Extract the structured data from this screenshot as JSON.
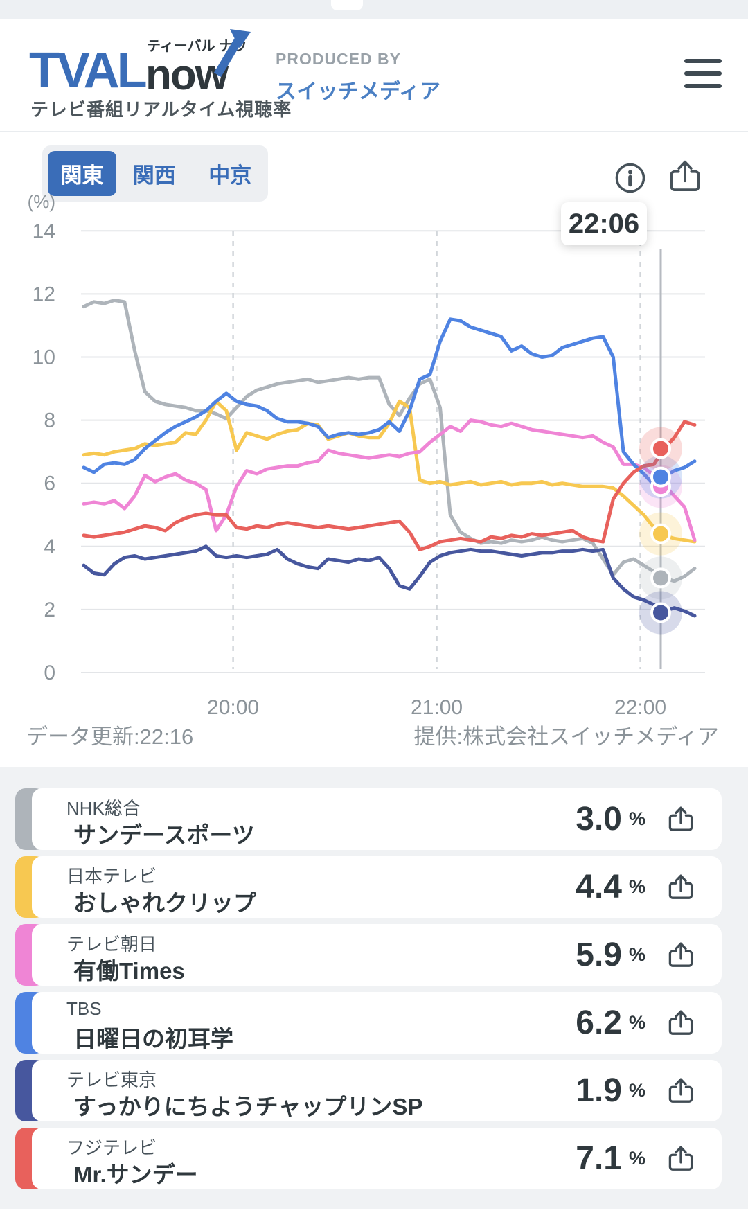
{
  "header": {
    "logo_tval": "TVAL",
    "logo_now": "now",
    "logo_ruby": "ティーバル ナウ",
    "logo_subtitle": "テレビ番組リアルタイム視聴率",
    "produced_by": "PRODUCED BY",
    "producer": "スイッチメディア"
  },
  "tabs": [
    {
      "label": "関東",
      "active": true
    },
    {
      "label": "関西",
      "active": false
    },
    {
      "label": "中京",
      "active": false
    }
  ],
  "footer": {
    "updated": "データ更新:22:16",
    "provider": "提供:株式会社スイッチメディア"
  },
  "ui_colors": {
    "accent_blue": "#3a6db8",
    "icon_slate": "#47525a",
    "text_dark": "#2f383d",
    "text_gray": "#8b9399",
    "list_bg": "#f0f2f4"
  },
  "chart_data": {
    "type": "line",
    "title": "",
    "y_axis": {
      "unit": "(%)",
      "ticks": [
        0,
        2,
        4,
        6,
        8,
        10,
        12,
        14
      ],
      "range": [
        0,
        14
      ],
      "grid": true
    },
    "x_axis": {
      "tick_labels": [
        "20:00",
        "21:00",
        "22:00"
      ],
      "tick_minutes": [
        44,
        104,
        164
      ],
      "total_minutes": 180,
      "step_minutes": 3
    },
    "cursor": {
      "time": "22:06",
      "minute": 170
    },
    "series": [
      {
        "name": "NHK総合",
        "color": "#aeb4ba",
        "current": 3.0,
        "values": [
          11.6,
          11.75,
          11.7,
          11.8,
          11.75,
          10.2,
          8.9,
          8.6,
          8.5,
          8.45,
          8.4,
          8.3,
          8.3,
          8.2,
          8.05,
          8.4,
          8.75,
          8.95,
          9.05,
          9.15,
          9.2,
          9.25,
          9.3,
          9.2,
          9.25,
          9.3,
          9.35,
          9.3,
          9.35,
          9.35,
          8.5,
          8.15,
          8.7,
          9.15,
          9.3,
          8.4,
          5.0,
          4.45,
          4.25,
          4.1,
          4.15,
          4.1,
          4.2,
          4.15,
          4.2,
          4.3,
          4.2,
          4.15,
          4.2,
          4.25,
          4.1,
          3.6,
          3.1,
          3.5,
          3.6,
          3.4,
          3.2,
          3.0,
          2.9,
          3.05,
          3.3
        ]
      },
      {
        "name": "日本テレビ",
        "color": "#f7c851",
        "current": 4.4,
        "values": [
          6.9,
          6.95,
          6.9,
          7.0,
          7.05,
          7.1,
          7.25,
          7.2,
          7.25,
          7.3,
          7.6,
          7.55,
          8.0,
          8.6,
          8.3,
          7.05,
          7.6,
          7.5,
          7.4,
          7.55,
          7.65,
          7.7,
          7.9,
          7.85,
          7.4,
          7.5,
          7.6,
          7.5,
          7.45,
          7.45,
          7.9,
          8.6,
          8.4,
          6.1,
          6.0,
          6.05,
          5.95,
          6.0,
          6.05,
          5.95,
          6.0,
          6.05,
          5.95,
          6.0,
          6.0,
          6.05,
          5.95,
          6.0,
          5.95,
          5.9,
          5.9,
          5.9,
          5.85,
          5.6,
          5.3,
          5.0,
          4.6,
          4.35,
          4.25,
          4.2,
          4.15
        ]
      },
      {
        "name": "テレビ朝日",
        "color": "#ef85d5",
        "current": 5.9,
        "values": [
          5.35,
          5.4,
          5.35,
          5.45,
          5.2,
          5.6,
          6.25,
          6.05,
          6.2,
          6.3,
          6.1,
          6.0,
          5.8,
          4.5,
          5.0,
          5.9,
          6.4,
          6.3,
          6.45,
          6.5,
          6.55,
          6.55,
          6.65,
          6.7,
          7.05,
          6.95,
          6.9,
          6.85,
          6.8,
          6.85,
          6.9,
          6.85,
          6.95,
          7.0,
          7.3,
          7.55,
          7.8,
          7.65,
          8.0,
          7.95,
          7.85,
          7.8,
          7.9,
          7.8,
          7.7,
          7.65,
          7.6,
          7.55,
          7.5,
          7.45,
          7.5,
          7.3,
          7.15,
          6.6,
          6.6,
          6.5,
          6.25,
          5.95,
          5.6,
          5.25,
          4.2
        ]
      },
      {
        "name": "TBS",
        "color": "#4f83e2",
        "current": 6.2,
        "values": [
          6.5,
          6.35,
          6.6,
          6.65,
          6.6,
          6.75,
          7.1,
          7.35,
          7.6,
          7.8,
          7.95,
          8.1,
          8.3,
          8.6,
          8.85,
          8.6,
          8.5,
          8.45,
          8.3,
          8.05,
          7.95,
          7.95,
          7.9,
          7.8,
          7.45,
          7.55,
          7.6,
          7.55,
          7.6,
          7.7,
          7.95,
          7.65,
          8.3,
          9.3,
          9.45,
          10.5,
          11.2,
          11.15,
          10.95,
          10.85,
          10.75,
          10.65,
          10.2,
          10.35,
          10.1,
          10.0,
          10.05,
          10.3,
          10.4,
          10.5,
          10.6,
          10.65,
          10.0,
          7.0,
          6.6,
          6.3,
          5.95,
          6.2,
          6.4,
          6.5,
          6.7
        ]
      },
      {
        "name": "テレビ東京",
        "color": "#47579e",
        "current": 1.9,
        "values": [
          3.4,
          3.15,
          3.1,
          3.45,
          3.65,
          3.7,
          3.6,
          3.65,
          3.7,
          3.75,
          3.8,
          3.85,
          4.0,
          3.7,
          3.65,
          3.7,
          3.65,
          3.7,
          3.75,
          3.9,
          3.6,
          3.45,
          3.35,
          3.3,
          3.6,
          3.55,
          3.5,
          3.6,
          3.55,
          3.65,
          3.3,
          2.75,
          2.65,
          3.05,
          3.5,
          3.7,
          3.8,
          3.85,
          3.9,
          3.85,
          3.85,
          3.8,
          3.75,
          3.7,
          3.75,
          3.8,
          3.8,
          3.85,
          3.85,
          3.9,
          3.85,
          3.9,
          3.0,
          2.65,
          2.4,
          2.3,
          2.15,
          1.95,
          2.05,
          1.95,
          1.8
        ]
      },
      {
        "name": "フジテレビ",
        "color": "#e8615c",
        "current": 7.1,
        "values": [
          4.35,
          4.3,
          4.35,
          4.4,
          4.45,
          4.55,
          4.65,
          4.6,
          4.5,
          4.75,
          4.9,
          5.0,
          5.05,
          5.0,
          5.0,
          4.6,
          4.55,
          4.65,
          4.6,
          4.7,
          4.75,
          4.7,
          4.65,
          4.6,
          4.65,
          4.6,
          4.55,
          4.6,
          4.65,
          4.7,
          4.75,
          4.8,
          4.45,
          3.9,
          4.0,
          4.15,
          4.2,
          4.25,
          4.2,
          4.15,
          4.3,
          4.25,
          4.35,
          4.3,
          4.4,
          4.35,
          4.4,
          4.45,
          4.5,
          4.3,
          4.2,
          4.15,
          5.5,
          6.0,
          6.35,
          6.55,
          6.6,
          7.1,
          7.45,
          7.95,
          7.85
        ]
      }
    ]
  },
  "programs": [
    {
      "channel": "NHK総合",
      "title": "サンデースポーツ",
      "value": "3.0",
      "unit": "%",
      "color": "#aeb4ba"
    },
    {
      "channel": "日本テレビ",
      "title": "おしゃれクリップ",
      "value": "4.4",
      "unit": "%",
      "color": "#f7c851"
    },
    {
      "channel": "テレビ朝日",
      "title": "有働Times",
      "value": "5.9",
      "unit": "%",
      "color": "#ef85d5"
    },
    {
      "channel": "TBS",
      "title": "日曜日の初耳学",
      "value": "6.2",
      "unit": "%",
      "color": "#4f83e2"
    },
    {
      "channel": "テレビ東京",
      "title": "すっかりにちようチャップリンSP",
      "value": "1.9",
      "unit": "%",
      "color": "#47579e"
    },
    {
      "channel": "フジテレビ",
      "title": "Mr.サンデー",
      "value": "7.1",
      "unit": "%",
      "color": "#e8615c"
    }
  ]
}
